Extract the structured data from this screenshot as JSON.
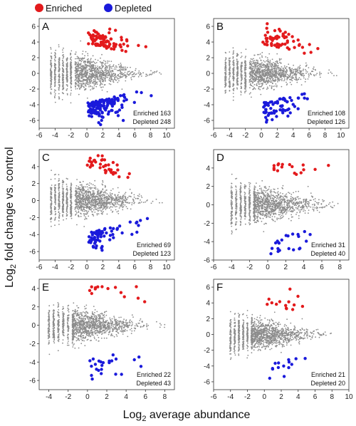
{
  "legend": {
    "enriched_label": "Enriched",
    "depleted_label": "Depleted",
    "enriched_color": "#e31a1c",
    "depleted_color": "#1a1adb",
    "neutral_color": "#8c8c8c"
  },
  "axes": {
    "x_base": "Log",
    "x_sub": "2",
    "x_rest": " average abundance",
    "y_base": "Log",
    "y_sub": "2",
    "y_rest": " fold change vs. control"
  },
  "chart_data": [
    {
      "type": "scatter",
      "panel": "A",
      "xlim": [
        -6,
        11
      ],
      "ylim": [
        -7,
        7
      ],
      "xticks": [
        -6,
        -4,
        -2,
        0,
        2,
        4,
        6,
        8,
        10
      ],
      "yticks": [
        -6,
        -4,
        -2,
        0,
        2,
        4,
        6
      ],
      "enriched_text": "Enriched 163",
      "depleted_text": "Depleted 248",
      "enriched_count": 163,
      "depleted_count": 248,
      "cloud": {
        "xmin": -4.5,
        "xpeak": -1.5,
        "xmax": 9.5,
        "spread": 3.4,
        "ymin": -6.6,
        "ymax": 6.5
      }
    },
    {
      "type": "scatter",
      "panel": "B",
      "xlim": [
        -6,
        11
      ],
      "ylim": [
        -7,
        7
      ],
      "xticks": [
        -6,
        -4,
        -2,
        0,
        2,
        4,
        6,
        8,
        10
      ],
      "yticks": [
        -6,
        -4,
        -2,
        0,
        2,
        4,
        6
      ],
      "enriched_text": "Enriched 108",
      "depleted_text": "Depleted 126",
      "enriched_count": 108,
      "depleted_count": 126,
      "cloud": {
        "xmin": -4.5,
        "xpeak": -1.5,
        "xmax": 9.5,
        "spread": 3.2,
        "ymin": -6.6,
        "ymax": 6.5
      }
    },
    {
      "type": "scatter",
      "panel": "C",
      "xlim": [
        -6,
        11
      ],
      "ylim": [
        -7,
        6
      ],
      "xticks": [
        -6,
        -4,
        -2,
        0,
        2,
        4,
        6,
        8,
        10
      ],
      "yticks": [
        -6,
        -4,
        -2,
        0,
        2,
        4
      ],
      "enriched_text": "Enriched 69",
      "depleted_text": "Depleted 123",
      "enriched_count": 69,
      "depleted_count": 123,
      "cloud": {
        "xmin": -4.5,
        "xpeak": -1.5,
        "xmax": 9.5,
        "spread": 3.0,
        "ymin": -6.0,
        "ymax": 5.4
      }
    },
    {
      "type": "scatter",
      "panel": "D",
      "xlim": [
        -6,
        9
      ],
      "ylim": [
        -6,
        6
      ],
      "xticks": [
        -6,
        -4,
        -2,
        0,
        2,
        4,
        6,
        8
      ],
      "yticks": [
        -6,
        -4,
        -2,
        0,
        2,
        4
      ],
      "enriched_text": "Enriched 31",
      "depleted_text": "Depleted 40",
      "enriched_count": 31,
      "depleted_count": 40,
      "cloud": {
        "xmin": -4.0,
        "xpeak": -1.5,
        "xmax": 8.5,
        "spread": 2.8,
        "ymin": -5.4,
        "ymax": 4.6
      }
    },
    {
      "type": "scatter",
      "panel": "E",
      "xlim": [
        -5,
        9
      ],
      "ylim": [
        -7,
        5
      ],
      "xticks": [
        -4,
        -2,
        0,
        2,
        4,
        6,
        8
      ],
      "yticks": [
        -6,
        -4,
        -2,
        0,
        2,
        4
      ],
      "enriched_text": "Enriched 22",
      "depleted_text": "Depleted 43",
      "enriched_count": 22,
      "depleted_count": 43,
      "cloud": {
        "xmin": -4.0,
        "xpeak": -1.5,
        "xmax": 8.0,
        "spread": 2.6,
        "ymin": -6.0,
        "ymax": 4.2
      }
    },
    {
      "type": "scatter",
      "panel": "F",
      "xlim": [
        -6,
        10
      ],
      "ylim": [
        -7,
        7
      ],
      "xticks": [
        -6,
        -4,
        -2,
        0,
        2,
        4,
        6,
        8,
        10
      ],
      "yticks": [
        -6,
        -4,
        -2,
        0,
        2,
        4,
        6
      ],
      "enriched_text": "Enriched 21",
      "depleted_text": "Depleted 20",
      "enriched_count": 21,
      "depleted_count": 20,
      "cloud": {
        "xmin": -4.0,
        "xpeak": -1.5,
        "xmax": 8.5,
        "spread": 2.8,
        "ymin": -5.6,
        "ymax": 6.1
      }
    }
  ]
}
